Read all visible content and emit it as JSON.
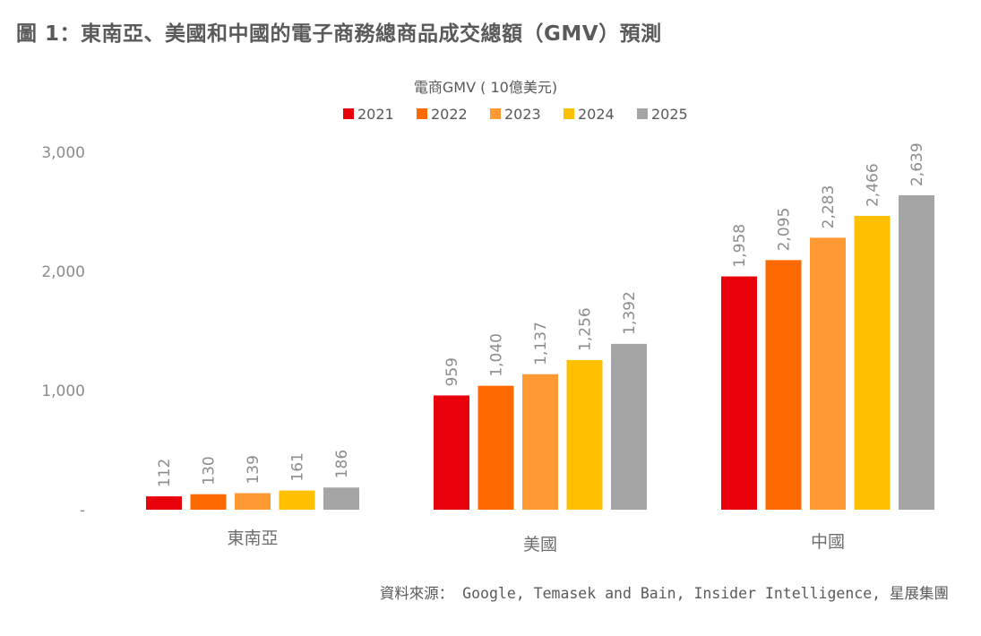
{
  "figure": {
    "title": "圖 1：東南亞、美國和中國的電子商務總商品成交總額（GMV）預測",
    "source": "資料來源： Google, Temasek and Bain, Insider Intelligence, 星展集團"
  },
  "chart_data": {
    "type": "bar",
    "title": "電商GMV ( 10億美元)",
    "categories": [
      "東南亞",
      "美國",
      "中國"
    ],
    "series": [
      {
        "name": "2021",
        "color": "#e8000b",
        "values": [
          112,
          959,
          1958
        ]
      },
      {
        "name": "2022",
        "color": "#ff6a00",
        "values": [
          130,
          1040,
          2095
        ]
      },
      {
        "name": "2023",
        "color": "#ff9933",
        "values": [
          139,
          1137,
          2283
        ]
      },
      {
        "name": "2024",
        "color": "#ffc000",
        "values": [
          161,
          1256,
          2466
        ]
      },
      {
        "name": "2025",
        "color": "#a5a5a5",
        "values": [
          186,
          1392,
          2639
        ]
      }
    ],
    "ylim": [
      0,
      3000
    ],
    "yticks": [
      0,
      1000,
      2000,
      3000
    ],
    "ytick_labels": [
      "-",
      "1,000",
      "2,000",
      "3,000"
    ],
    "data_labels": [
      [
        "112",
        "130",
        "139",
        "161",
        "186"
      ],
      [
        "959",
        "1,040",
        "1,137",
        "1,256",
        "1,392"
      ],
      [
        "1,958",
        "2,095",
        "2,283",
        "2,466",
        "2,639"
      ]
    ],
    "legend": "top",
    "grid": false
  }
}
